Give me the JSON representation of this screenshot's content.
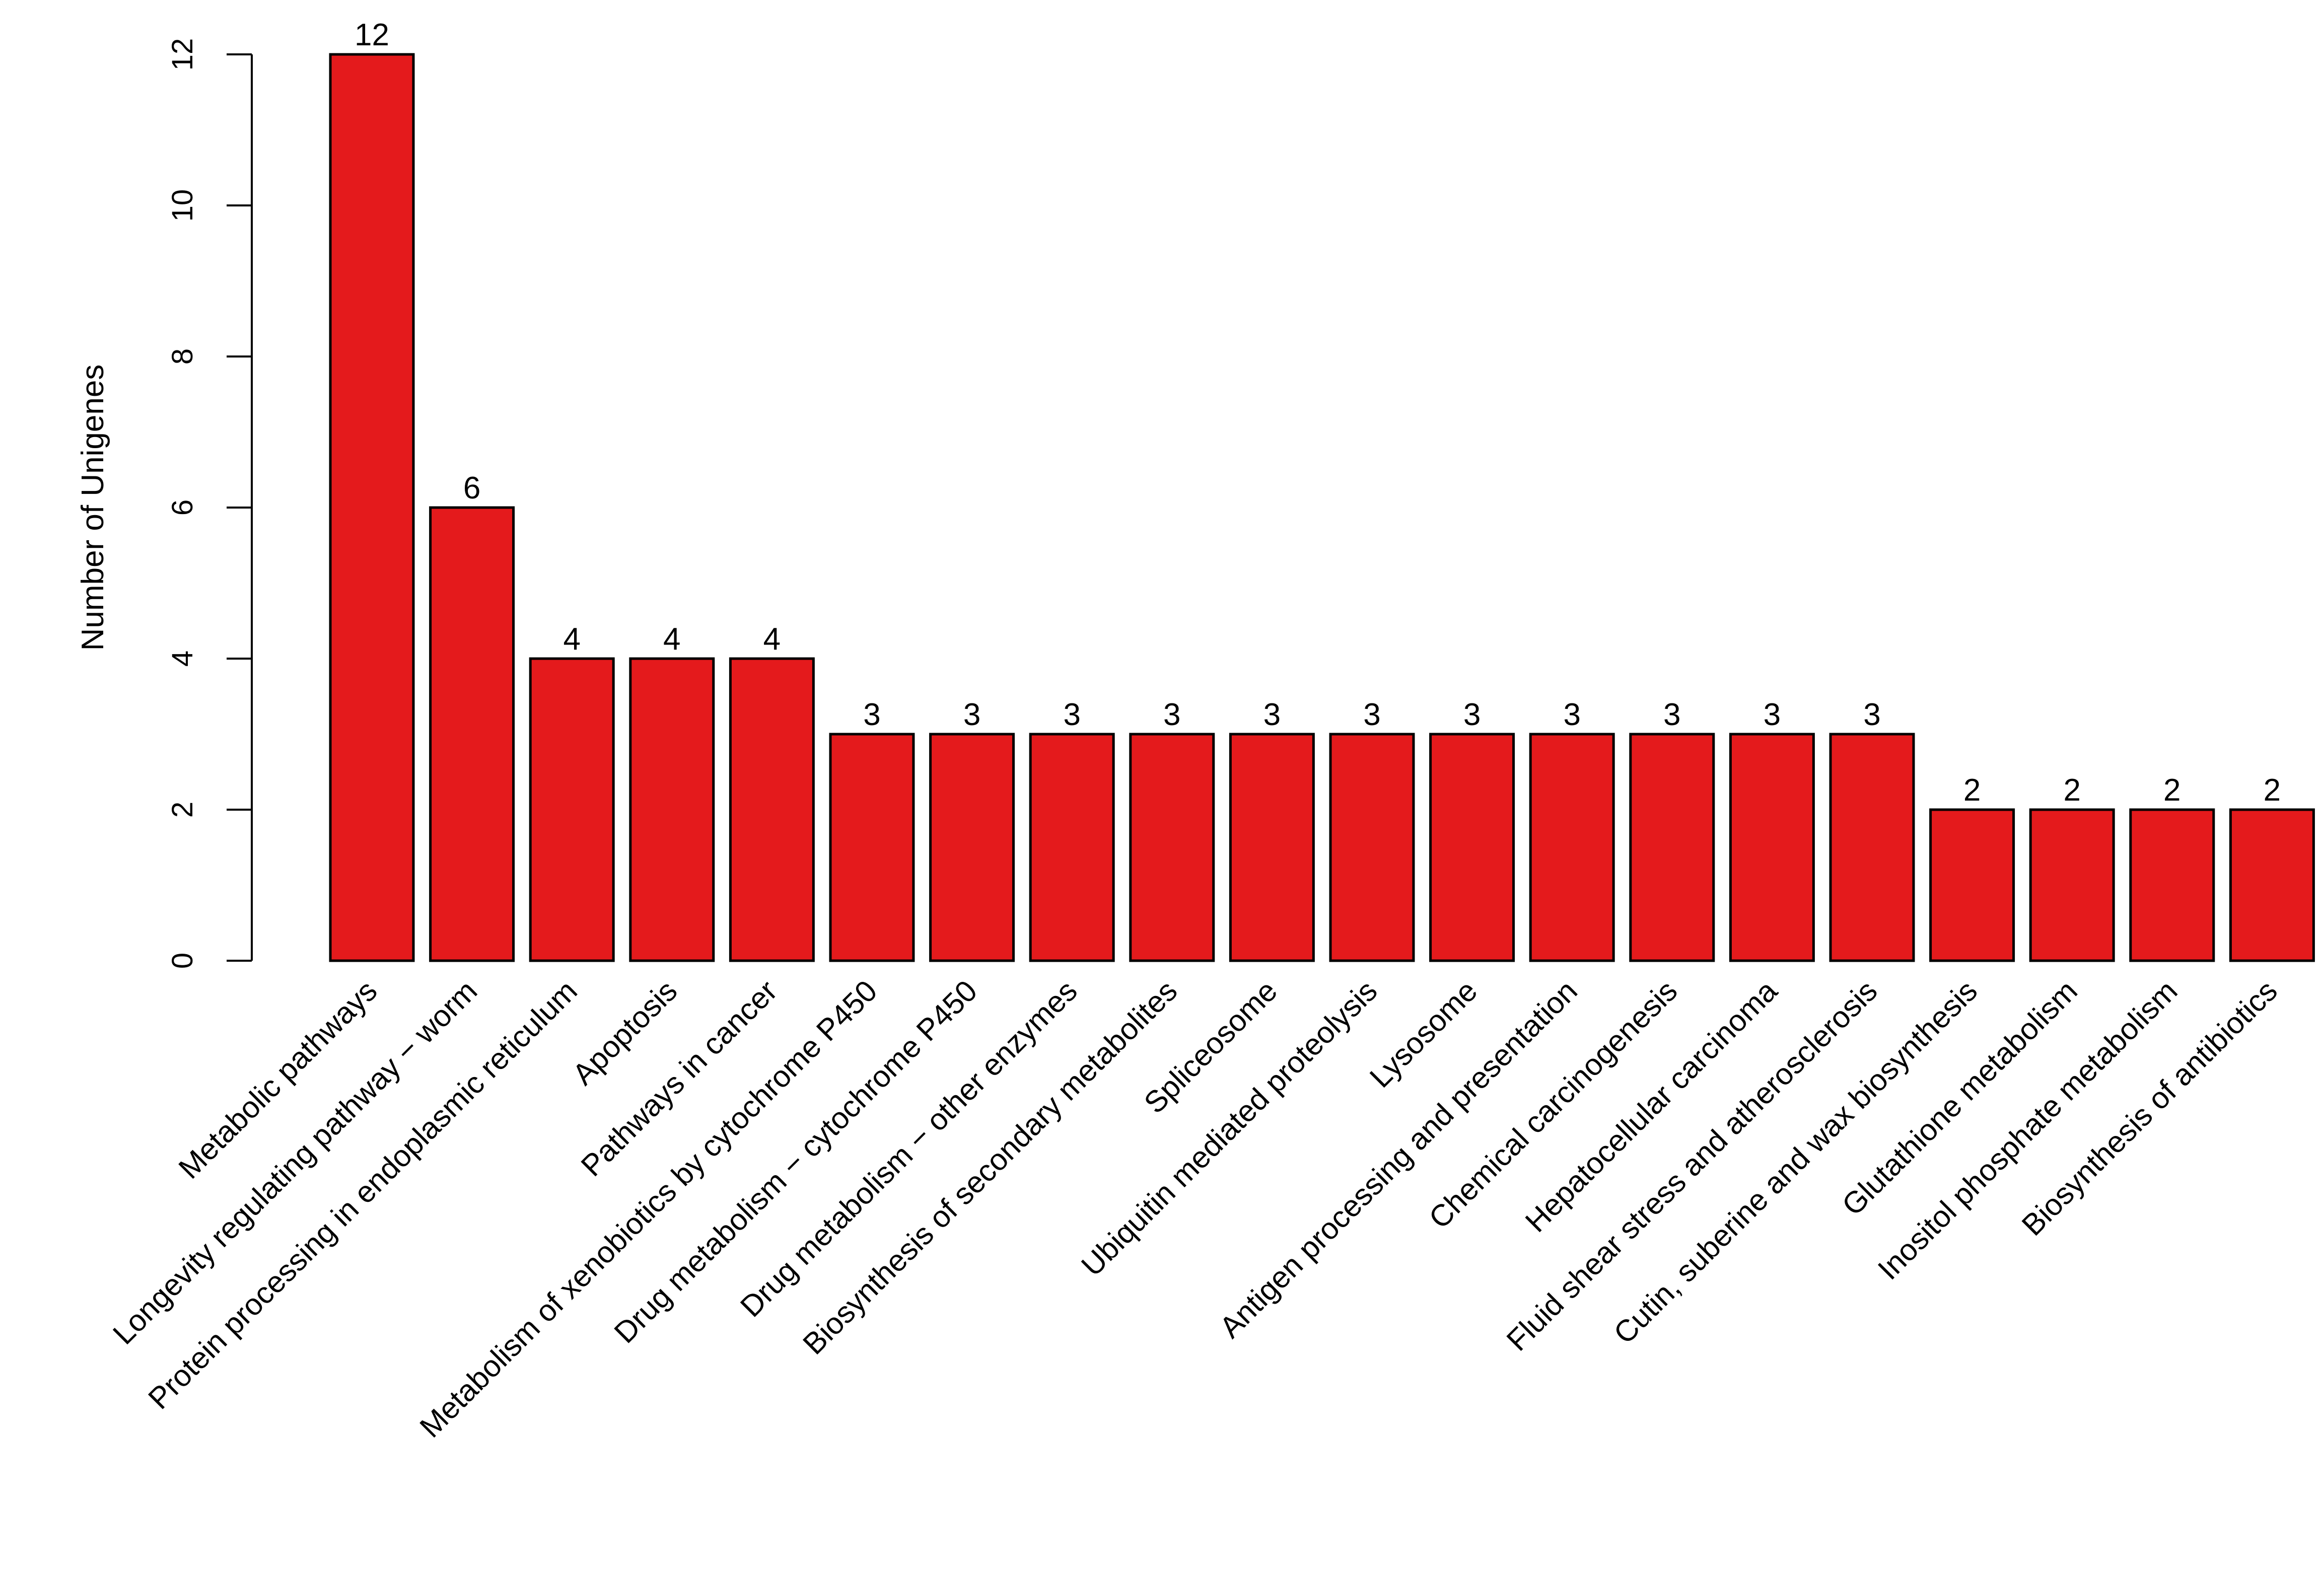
{
  "chart_data": {
    "type": "bar",
    "title": "",
    "xlabel": "",
    "ylabel": "Number of Unigenes",
    "ylim": [
      0,
      12
    ],
    "yticks": [
      0,
      2,
      4,
      6,
      8,
      10,
      12
    ],
    "grid": false,
    "legend": "none",
    "bar_color": "#e41a1c",
    "categories": [
      "Metabolic pathways",
      "Longevity regulating pathway − worm",
      "Protein processing in endoplasmic reticulum",
      "Apoptosis",
      "Pathways in cancer",
      "Metabolism of xenobiotics by cytochrome P450",
      "Drug metabolism − cytochrome P450",
      "Drug metabolism − other enzymes",
      "Biosynthesis of secondary metabolites",
      "Spliceosome",
      "Ubiquitin mediated proteolysis",
      "Lysosome",
      "Antigen processing and presentation",
      "Chemical carcinogenesis",
      "Hepatocellular carcinoma",
      "Fluid shear stress and atherosclerosis",
      "Cutin, suberine and wax biosynthesis",
      "Glutathione metabolism",
      "Inositol phosphate metabolism",
      "Biosynthesis of antibiotics"
    ],
    "values": [
      12,
      6,
      4,
      4,
      4,
      3,
      3,
      3,
      3,
      3,
      3,
      3,
      3,
      3,
      3,
      3,
      2,
      2,
      2,
      2
    ],
    "value_labels": [
      "12",
      "6",
      "4",
      "4",
      "4",
      "3",
      "3",
      "3",
      "3",
      "3",
      "3",
      "3",
      "3",
      "3",
      "3",
      "3",
      "2",
      "2",
      "2",
      "2"
    ]
  }
}
